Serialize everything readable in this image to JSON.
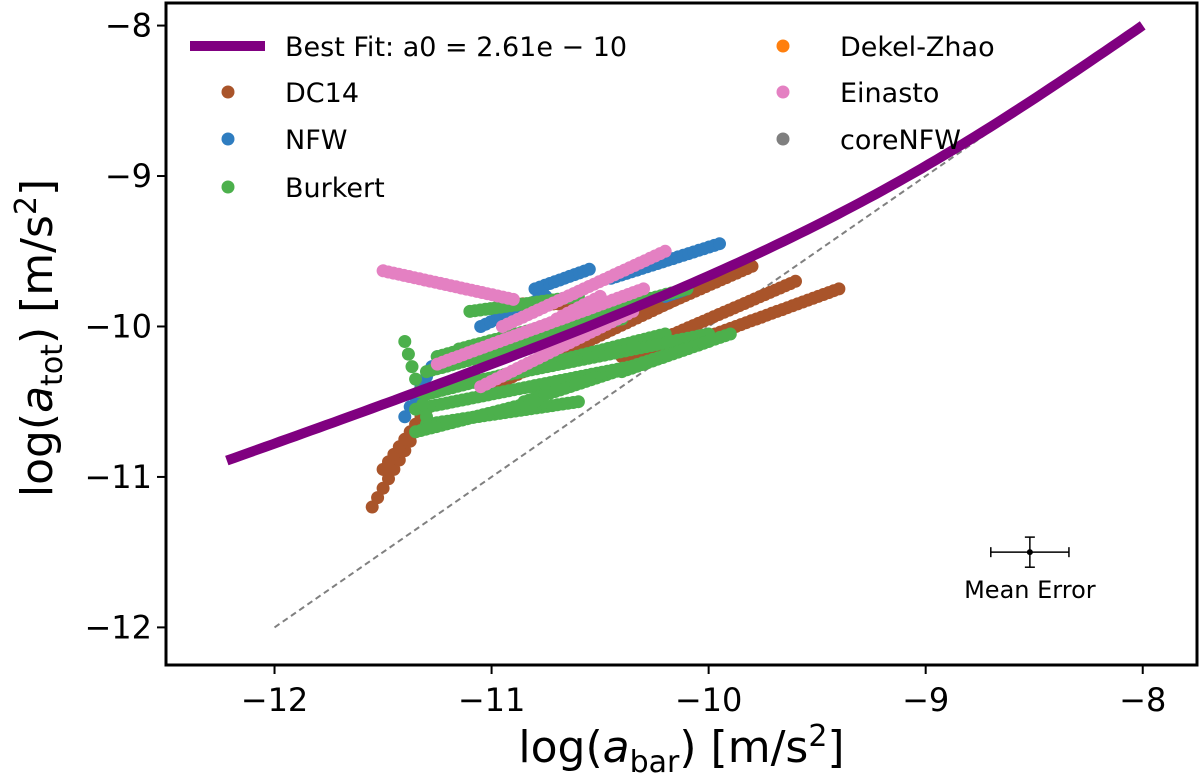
{
  "chart_data": {
    "type": "scatter",
    "xlabel": "log(a_bar) [m/s^2]",
    "ylabel": "log(a_tot) [m/s^2]",
    "xlim": [
      -12.5,
      -7.75
    ],
    "ylim": [
      -12.25,
      -7.85
    ],
    "xticks": [
      "−12",
      "−11",
      "−10",
      "−9",
      "−8"
    ],
    "yticks": [
      "−12",
      "−11",
      "−10",
      "−9",
      "−8"
    ],
    "grid": false,
    "legend_position": "top",
    "best_fit": {
      "label": "Best Fit: a0 = 2.61e − 10",
      "color": "#800080",
      "a0": 2.61e-10,
      "x_range": [
        -12.22,
        -8.0
      ]
    },
    "one_to_one_line": {
      "x": [
        -12,
        -8
      ],
      "y": [
        -12,
        -8
      ],
      "color": "#808080"
    },
    "series": [
      {
        "name": "DC14",
        "color": "#a9542a",
        "segments": [
          {
            "x0": -11.55,
            "x1": -11.35,
            "y0": -11.2,
            "y1": -10.7
          },
          {
            "x0": -11.5,
            "x1": -11.3,
            "y0": -10.95,
            "y1": -10.55
          },
          {
            "x0": -11.0,
            "x1": -9.9,
            "y0": -10.4,
            "y1": -9.65
          },
          {
            "x0": -10.75,
            "x1": -9.8,
            "y0": -10.2,
            "y1": -9.6
          },
          {
            "x0": -10.4,
            "x1": -9.6,
            "y0": -10.2,
            "y1": -9.7
          },
          {
            "x0": -10.35,
            "x1": -9.4,
            "y0": -10.25,
            "y1": -9.75
          },
          {
            "x0": -10.95,
            "x1": -10.55,
            "y0": -9.85,
            "y1": -9.85
          }
        ]
      },
      {
        "name": "NFW",
        "color": "#2f7dc0",
        "segments": [
          {
            "x0": -10.8,
            "x1": -10.55,
            "y0": -9.75,
            "y1": -9.62
          },
          {
            "x0": -10.45,
            "x1": -9.95,
            "y0": -9.68,
            "y1": -9.45
          },
          {
            "x0": -11.4,
            "x1": -11.25,
            "y0": -10.6,
            "y1": -10.2
          },
          {
            "x0": -11.05,
            "x1": -10.75,
            "y0": -10.0,
            "y1": -9.8
          },
          {
            "x0": -10.2,
            "x1": -10.1,
            "y0": -9.8,
            "y1": -9.75
          }
        ]
      },
      {
        "name": "Burkert",
        "color": "#4cb04c",
        "segments": [
          {
            "x0": -11.35,
            "x1": -10.3,
            "y0": -10.55,
            "y1": -10.25
          },
          {
            "x0": -11.3,
            "x1": -10.2,
            "y0": -10.45,
            "y1": -10.05
          },
          {
            "x0": -11.3,
            "x1": -10.4,
            "y0": -10.3,
            "y1": -9.95
          },
          {
            "x0": -11.25,
            "x1": -10.35,
            "y0": -10.2,
            "y1": -9.85
          },
          {
            "x0": -11.3,
            "x1": -10.6,
            "y0": -10.65,
            "y1": -10.5
          },
          {
            "x0": -11.15,
            "x1": -10.1,
            "y0": -10.15,
            "y1": -9.75
          },
          {
            "x0": -11.2,
            "x1": -10.0,
            "y0": -10.4,
            "y1": -10.05
          },
          {
            "x0": -10.85,
            "x1": -9.9,
            "y0": -10.5,
            "y1": -10.05
          },
          {
            "x0": -10.4,
            "x1": -10.0,
            "y0": -10.3,
            "y1": -10.1
          },
          {
            "x0": -11.35,
            "x1": -10.8,
            "y0": -10.7,
            "y1": -10.5
          },
          {
            "x0": -11.1,
            "x1": -10.6,
            "y0": -9.9,
            "y1": -9.8
          },
          {
            "x0": -11.4,
            "x1": -11.3,
            "y0": -10.1,
            "y1": -10.6
          }
        ]
      },
      {
        "name": "Dekel-Zhao",
        "color": "#ff7f0e",
        "segments": []
      },
      {
        "name": "Einasto",
        "color": "#e480c2",
        "segments": [
          {
            "x0": -11.5,
            "x1": -10.9,
            "y0": -9.63,
            "y1": -9.82
          },
          {
            "x0": -11.25,
            "x1": -10.3,
            "y0": -10.25,
            "y1": -9.75
          },
          {
            "x0": -10.95,
            "x1": -10.2,
            "y0": -10.0,
            "y1": -9.5
          },
          {
            "x0": -11.05,
            "x1": -10.35,
            "y0": -10.4,
            "y1": -9.9
          },
          {
            "x0": -10.7,
            "x1": -10.5,
            "y0": -9.95,
            "y1": -9.8
          }
        ]
      },
      {
        "name": "coreNFW",
        "color": "#7f7f7f",
        "segments": []
      }
    ],
    "mean_error": {
      "label": "Mean Error",
      "x": -8.52,
      "y": -11.5,
      "xerr": 0.18,
      "yerr": 0.1
    }
  }
}
